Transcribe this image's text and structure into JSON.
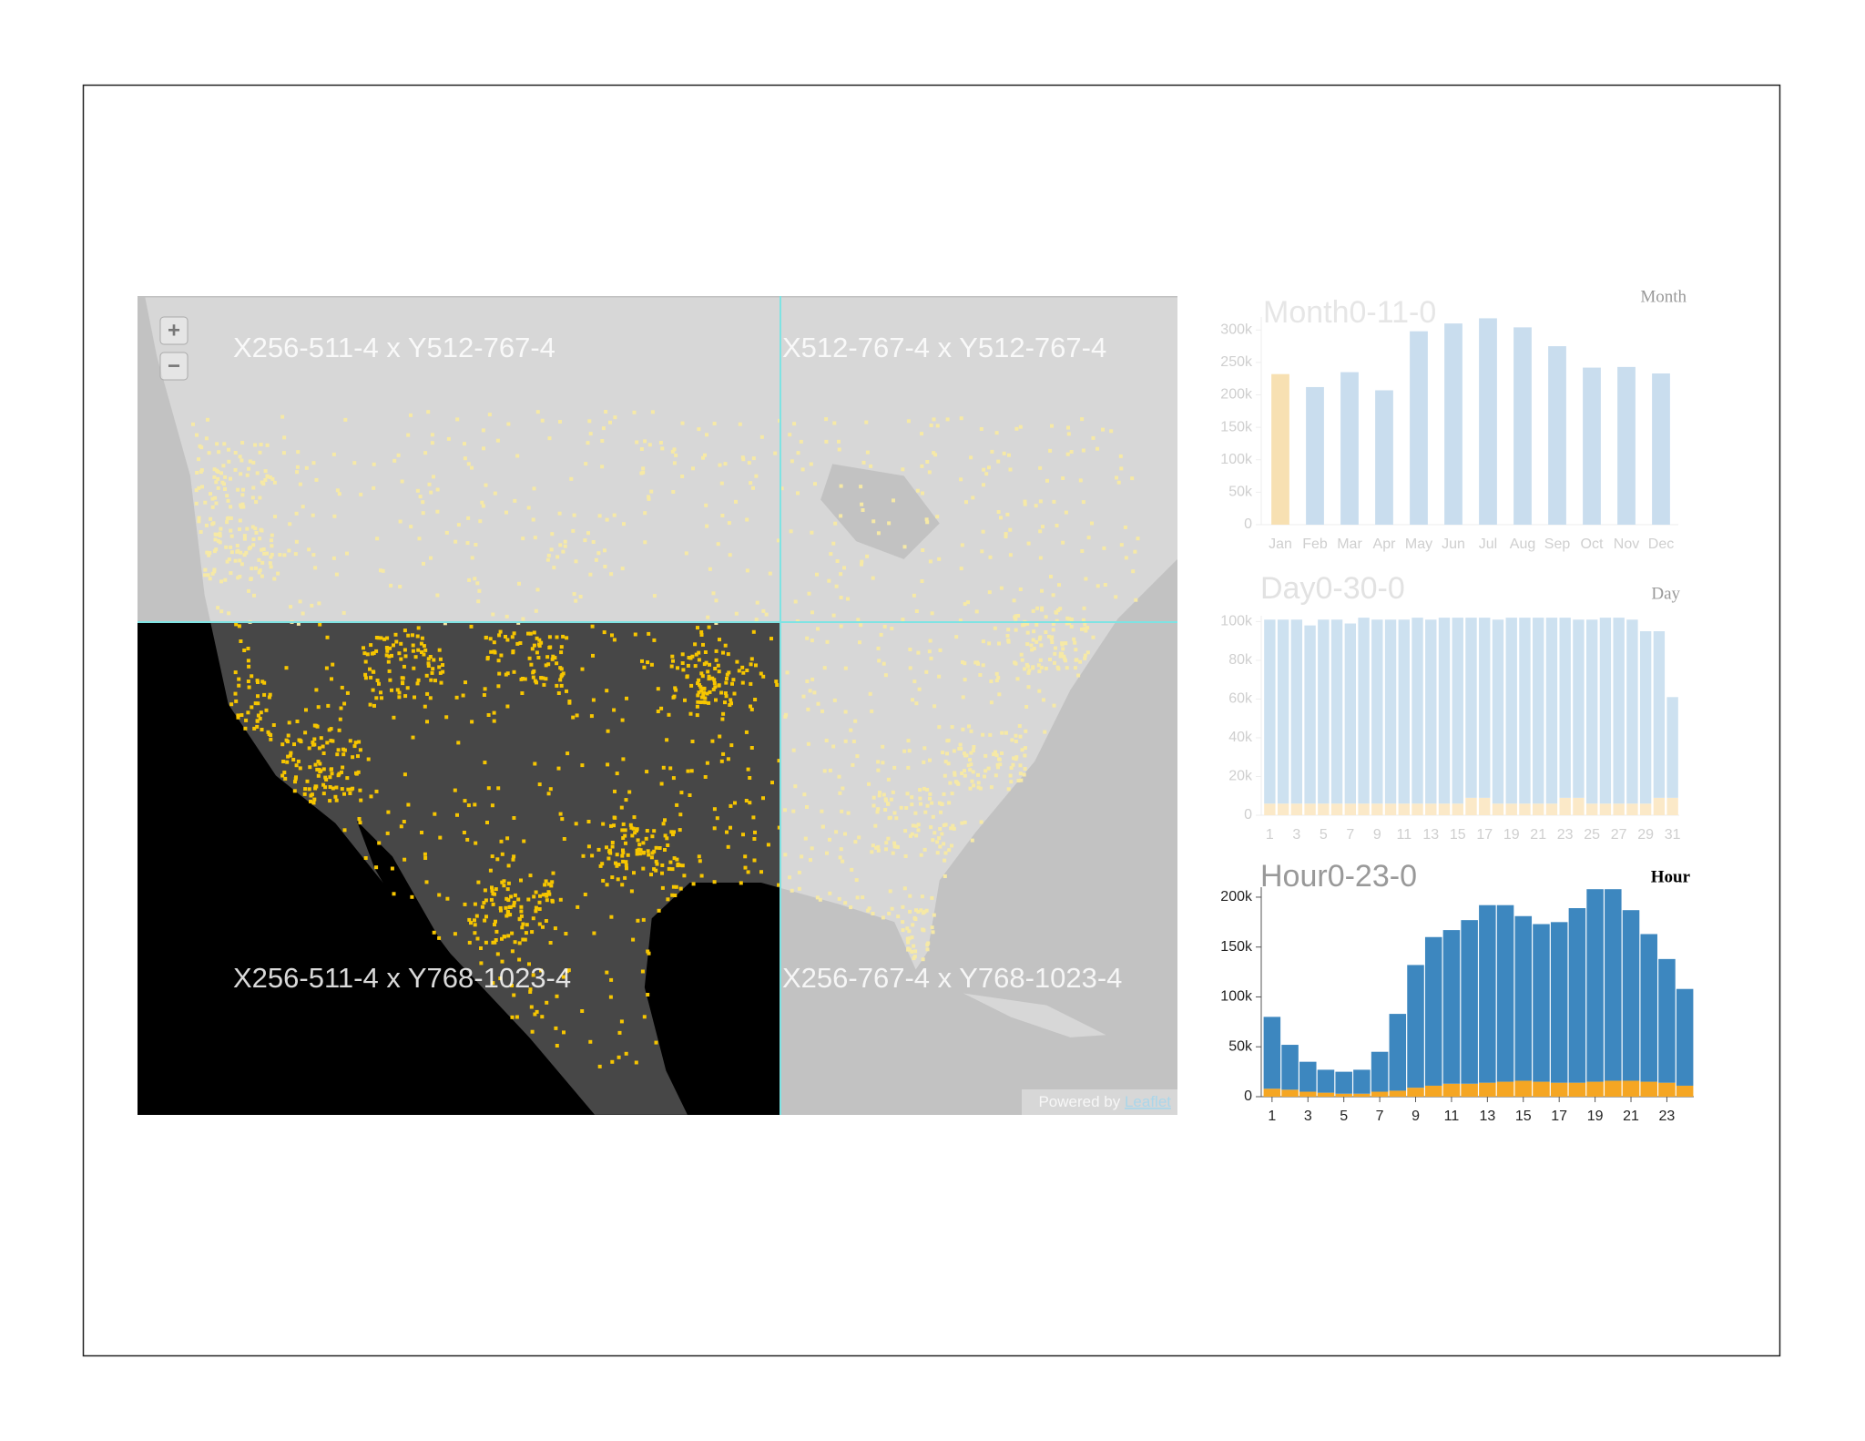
{
  "map": {
    "tiles": [
      "X256-511-4 x Y512-767-4",
      "X512-767-4 x Y512-767-4",
      "X256-511-4 x Y768-1023-4",
      "X256-767-4 x Y768-1023-4"
    ],
    "zoom_in": "+",
    "zoom_out": "−",
    "attribution": "Powered by ",
    "attribution_link": "Leaflet"
  },
  "chart_data": [
    {
      "type": "bar",
      "title": "Month0-11-0",
      "label": "Month",
      "categories": [
        "Jan",
        "Feb",
        "Mar",
        "Apr",
        "May",
        "Jun",
        "Jul",
        "Aug",
        "Sep",
        "Oct",
        "Nov",
        "Dec"
      ],
      "values": [
        232000,
        212000,
        235000,
        207000,
        298000,
        310000,
        318000,
        304000,
        275000,
        242000,
        243000,
        233000
      ],
      "colors": [
        "#f7e0b2",
        "#c9ddee",
        "#c9ddee",
        "#c9ddee",
        "#c9ddee",
        "#c9ddee",
        "#c9ddee",
        "#c9ddee",
        "#c9ddee",
        "#c9ddee",
        "#c9ddee",
        "#c9ddee"
      ],
      "ylim": [
        0,
        320000
      ],
      "yticks": [
        0,
        {
          "value": 50000,
          "label": "50k"
        },
        {
          "value": 100000,
          "label": "100k"
        },
        {
          "value": 150000,
          "label": "150k"
        },
        {
          "value": 200000,
          "label": "200k"
        },
        {
          "value": 250000,
          "label": "250k"
        },
        {
          "value": 300000,
          "label": "300k"
        }
      ]
    },
    {
      "type": "stacked_bar",
      "title": "Day0-30-0",
      "label": "Day",
      "categories": [
        1,
        null,
        3,
        null,
        5,
        null,
        7,
        null,
        9,
        null,
        11,
        null,
        13,
        null,
        15,
        null,
        17,
        null,
        19,
        null,
        21,
        null,
        23,
        null,
        25,
        null,
        27,
        null,
        29,
        null,
        31
      ],
      "series": [
        {
          "color": "#fbe9c8",
          "values": [
            6000,
            6000,
            6000,
            6000,
            6000,
            6000,
            6000,
            6000,
            6000,
            6000,
            6000,
            6000,
            6000,
            6000,
            6000,
            9000,
            9000,
            6000,
            6000,
            6000,
            6000,
            6000,
            9000,
            9000,
            6000,
            6000,
            6000,
            6000,
            6000,
            9000,
            9000
          ]
        },
        {
          "color": "#cde1f0",
          "values": [
            95000,
            95000,
            95000,
            92000,
            95000,
            95000,
            93000,
            96000,
            95000,
            95000,
            95000,
            96000,
            95000,
            96000,
            96000,
            93000,
            93000,
            95000,
            96000,
            96000,
            96000,
            96000,
            93000,
            92000,
            95000,
            96000,
            96000,
            95000,
            89000,
            86000,
            52000
          ]
        }
      ],
      "ylim": [
        0,
        103000
      ],
      "yticks": [
        0,
        {
          "value": 20000,
          "label": "20k"
        },
        {
          "value": 40000,
          "label": "40k"
        },
        {
          "value": 60000,
          "label": "60k"
        },
        {
          "value": 80000,
          "label": "80k"
        },
        {
          "value": 100000,
          "label": "100k"
        }
      ]
    },
    {
      "type": "stacked_bar",
      "title": "Hour0-23-0",
      "label": "Hour",
      "categories": [
        1,
        null,
        3,
        null,
        5,
        null,
        7,
        null,
        9,
        null,
        11,
        null,
        13,
        null,
        15,
        null,
        17,
        null,
        19,
        null,
        21,
        null,
        23,
        null
      ],
      "series": [
        {
          "color": "#f5a623",
          "values": [
            8000,
            7000,
            5000,
            4000,
            3000,
            3000,
            5000,
            6000,
            9000,
            11000,
            13000,
            13000,
            14000,
            15000,
            16000,
            15000,
            14000,
            14000,
            15000,
            16000,
            16000,
            15000,
            14000,
            11000
          ]
        },
        {
          "color": "#3d87bf",
          "values": [
            72000,
            45000,
            30000,
            23000,
            22000,
            24000,
            40000,
            77000,
            123000,
            149000,
            154000,
            164000,
            178000,
            177000,
            165000,
            158000,
            161000,
            175000,
            193000,
            192000,
            171000,
            148000,
            124000,
            97000
          ]
        }
      ],
      "ylim": [
        0,
        210000
      ],
      "yticks": [
        0,
        {
          "value": 50000,
          "label": "50k"
        },
        {
          "value": 100000,
          "label": "100k"
        },
        {
          "value": 150000,
          "label": "150k"
        },
        {
          "value": 200000,
          "label": "200k"
        }
      ]
    }
  ]
}
